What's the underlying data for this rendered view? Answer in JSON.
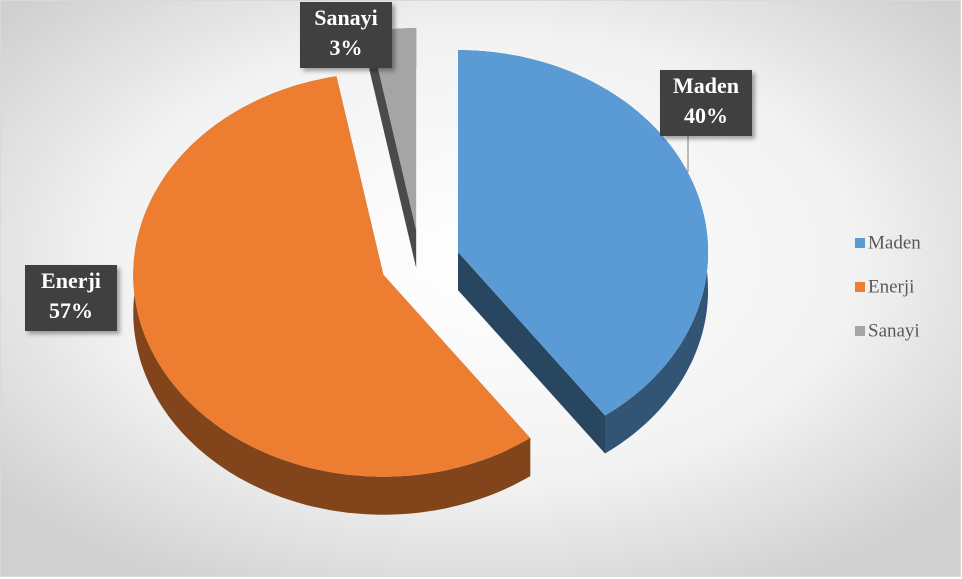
{
  "chart_data": {
    "type": "pie",
    "categories": [
      "Maden",
      "Enerji",
      "Sanayi"
    ],
    "values": [
      40,
      57,
      3
    ],
    "value_labels": [
      "40%",
      "57%",
      "3%"
    ],
    "colors": [
      "#5b9bd5",
      "#ed7d31",
      "#a5a5a5"
    ],
    "legend": "right"
  }
}
